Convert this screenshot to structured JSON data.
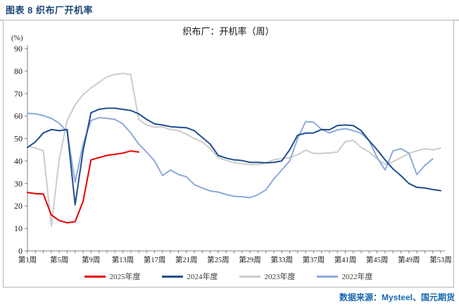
{
  "header": {
    "caption": "图表 8 织布厂开机率"
  },
  "footer": {
    "source": "数据来源：Mysteel、国元期货"
  },
  "colors": {
    "caption_blue": "#1f4977",
    "source_blue": "#1668b0",
    "axis_gray": "#7f7f7f",
    "series_2025": "#e60000",
    "series_2024": "#1f4e8f",
    "series_2023": "#cccccc",
    "series_2022": "#8ea9db"
  },
  "chart_data": {
    "type": "line",
    "title": "织布厂：开机率（周）",
    "unit_label": "(%)",
    "xlabel": "",
    "ylabel": "(%)",
    "ylim": [
      0,
      90
    ],
    "y_tick_step": 10,
    "weeks_max": 53,
    "grid": false,
    "legend_position": "bottom",
    "x_tick_labels": [
      "第1周",
      "第5周",
      "第9周",
      "第13周",
      "第17周",
      "第21周",
      "第25周",
      "第29周",
      "第33周",
      "第37周",
      "第41周",
      "第45周",
      "第49周",
      "第53周"
    ],
    "x_tick_label_weeks": [
      1,
      5,
      9,
      13,
      17,
      21,
      25,
      29,
      33,
      37,
      41,
      45,
      49,
      53
    ],
    "series": [
      {
        "name": "2025年度",
        "color": "#e60000",
        "start_week": 1,
        "values": [
          26,
          25.5,
          25.3,
          16,
          13.5,
          12.5,
          13,
          22,
          40.5,
          41.5,
          42.5,
          43,
          43.5,
          44.5,
          44
        ]
      },
      {
        "name": "2024年度",
        "color": "#1f4e8f",
        "start_week": 1,
        "values": [
          46,
          48.5,
          52.5,
          54,
          53.5,
          54,
          20.5,
          44.5,
          61.5,
          63,
          63.5,
          63.5,
          63,
          62.5,
          61,
          58.5,
          56.5,
          56,
          55.3,
          55,
          54.8,
          53.5,
          50.5,
          47.5,
          42.5,
          41.3,
          40.5,
          40.2,
          39.4,
          39.4,
          39.2,
          39.4,
          40,
          45,
          51.5,
          52.4,
          52.5,
          54,
          53.9,
          55.8,
          56,
          55.8,
          53.5,
          49,
          45,
          40.5,
          36.5,
          33.5,
          30,
          28.3,
          28,
          27.3,
          26.8
        ]
      },
      {
        "name": "2023年度",
        "color": "#cccccc",
        "start_week": 1,
        "values": [
          46.5,
          45.8,
          44.5,
          11,
          41,
          58,
          65,
          69.5,
          72.5,
          75,
          77.5,
          78.5,
          79,
          78.5,
          58.5,
          56,
          55,
          55.2,
          54,
          53.5,
          52,
          50,
          48.5,
          45.5,
          41.5,
          40.3,
          39.3,
          38.8,
          38.4,
          38.4,
          39.2,
          40.5,
          41.1,
          41.5,
          42.8,
          44.8,
          43.4,
          43.4,
          43.6,
          44,
          48.6,
          49.2,
          46,
          44,
          41,
          38.5,
          39.7,
          41.5,
          43.4,
          44.5,
          45.5,
          45,
          45.7
        ]
      },
      {
        "name": "2022年度",
        "color": "#8ea9db",
        "start_week": 1,
        "values": [
          61.2,
          61,
          60.2,
          59,
          56.8,
          53,
          30.5,
          47.5,
          58,
          59.3,
          59,
          58.5,
          56.5,
          52.5,
          47.5,
          44,
          40,
          33.5,
          36,
          34,
          33,
          29.5,
          28,
          26.7,
          26.2,
          25.1,
          24.3,
          24.1,
          23.7,
          25,
          27.2,
          32,
          36,
          40,
          50,
          57.5,
          57.3,
          54,
          52.5,
          53.8,
          54.4,
          53.5,
          52.4,
          49,
          41.5,
          36,
          44.5,
          45.5,
          43.5,
          34,
          38,
          41
        ]
      }
    ],
    "draw_order": [
      2,
      3,
      1,
      0
    ]
  }
}
